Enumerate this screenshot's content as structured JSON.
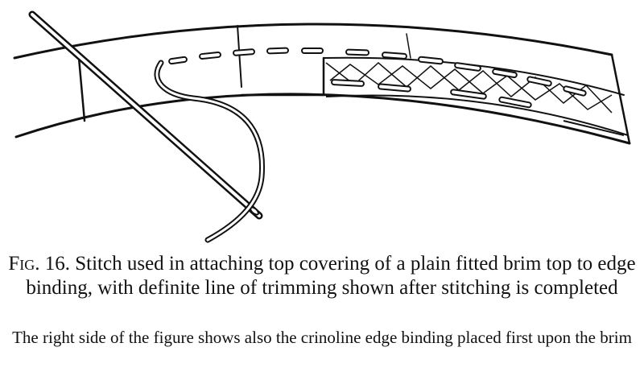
{
  "figure": {
    "label": "Fig. 16.",
    "caption": "Stitch used in attaching top covering of a plain fitted brim top to edge binding, with definite line of trimming shown after stitching is completed",
    "note": "The right side of the figure shows also the crinoline edge binding placed first upon the brim"
  }
}
